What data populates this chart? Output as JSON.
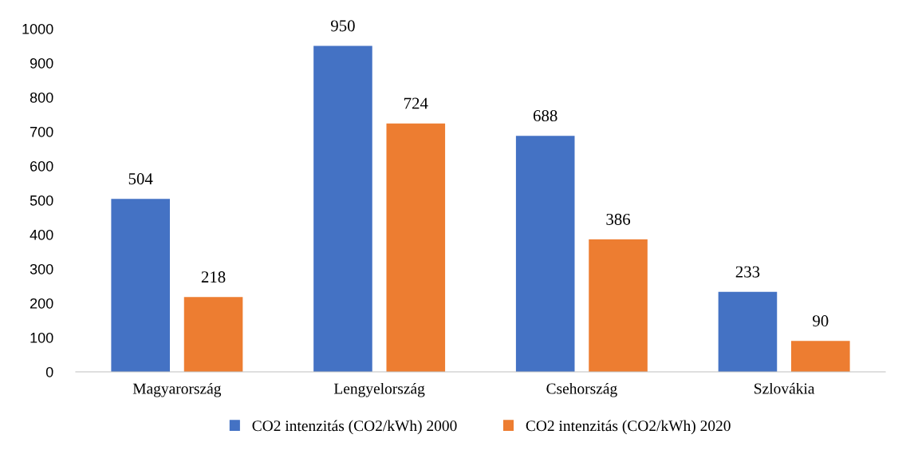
{
  "chart_data": {
    "type": "bar",
    "categories": [
      "Magyarország",
      "Lengyelország",
      "Csehország",
      "Szlovákia"
    ],
    "series": [
      {
        "name": "CO2 intenzitás (CO2/kWh) 2000",
        "color": "#4472c4",
        "values": [
          504,
          950,
          688,
          233
        ]
      },
      {
        "name": "CO2 intenzitás (CO2/kWh) 2020",
        "color": "#ed7d31",
        "values": [
          218,
          724,
          386,
          90
        ]
      }
    ],
    "ylim": [
      0,
      1000
    ],
    "yticks": [
      0,
      100,
      200,
      300,
      400,
      500,
      600,
      700,
      800,
      900,
      1000
    ],
    "data_labels": true,
    "grid": false,
    "legend": "bottom"
  }
}
